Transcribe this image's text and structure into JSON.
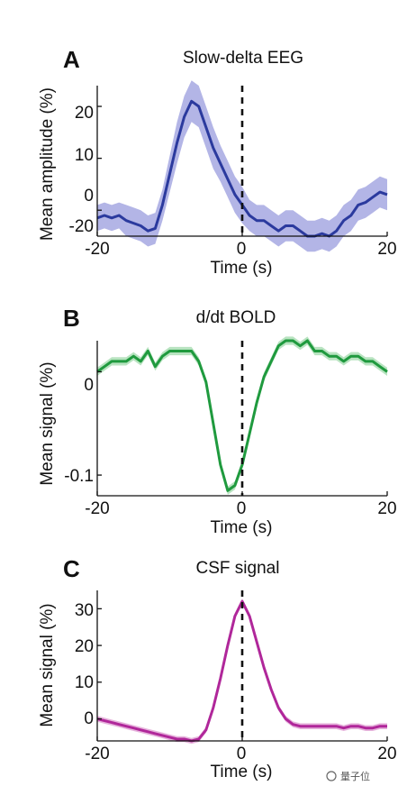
{
  "watermark": "量子位",
  "chart_data": [
    {
      "type": "line",
      "panel": "A",
      "title": "Slow-delta EEG",
      "xlabel": "Time (s)",
      "ylabel": "Mean amplitude (%)",
      "xlim": [
        -20,
        20
      ],
      "ylim": [
        -5,
        24
      ],
      "x_ticks": [
        -20,
        0,
        20
      ],
      "y_ticks": [
        0,
        10,
        20
      ],
      "x_tick_labels": [
        "-20",
        "0",
        "20"
      ],
      "y_tick_labels": [
        "0",
        "10",
        "20"
      ],
      "extra_y_tick_labels": [
        {
          "value": -4.5,
          "label": "-20"
        }
      ],
      "vline_x": 0,
      "line_color": "#2b3a9e",
      "band_color": "#b3b5e6",
      "series": [
        {
          "x": [
            -20,
            -19,
            -18,
            -17,
            -16,
            -15,
            -14,
            -13,
            -12,
            -11,
            -10,
            -9,
            -8,
            -7,
            -6,
            -5,
            -4,
            -3,
            -2,
            -1,
            0,
            1,
            2,
            3,
            4,
            5,
            6,
            7,
            8,
            9,
            10,
            11,
            12,
            13,
            14,
            15,
            16,
            17,
            18,
            19,
            20
          ],
          "values": [
            -1.5,
            -1,
            -1.5,
            -1,
            -2,
            -2.5,
            -3,
            -4,
            -3.5,
            1,
            7,
            13,
            18,
            21,
            20,
            16,
            12,
            9,
            6,
            3,
            1,
            -1,
            -2,
            -2,
            -3,
            -4,
            -3,
            -3,
            -4,
            -5,
            -5,
            -4.5,
            -5,
            -4,
            -2,
            -1,
            1,
            1.5,
            2.5,
            3.5,
            3
          ],
          "err": [
            2.5,
            2.5,
            2.5,
            2.5,
            3,
            3,
            3,
            3,
            3,
            3,
            3.5,
            4,
            4,
            4,
            4,
            4,
            4,
            3.5,
            3.5,
            3.5,
            3.5,
            3,
            3,
            3,
            3,
            3,
            3,
            3,
            3,
            3,
            3,
            3,
            3,
            3,
            3,
            3,
            3,
            3,
            3,
            3,
            3
          ]
        }
      ]
    },
    {
      "type": "line",
      "panel": "B",
      "title": "d/dt BOLD",
      "xlabel": "Time (s)",
      "ylabel": "Mean signal (%)",
      "xlim": [
        -20,
        20
      ],
      "ylim": [
        -0.12,
        0.03
      ],
      "x_ticks": [
        -20,
        0,
        20
      ],
      "y_ticks": [
        0,
        -0.1
      ],
      "x_tick_labels": [
        "-20",
        "0",
        "20"
      ],
      "y_tick_labels": [
        "0",
        "-0.1"
      ],
      "vline_x": 0,
      "line_color": "#1f9a3e",
      "band_color": "#b8e3c0",
      "series": [
        {
          "x": [
            -20,
            -19,
            -18,
            -17,
            -16,
            -15,
            -14,
            -13,
            -12,
            -11,
            -10,
            -9,
            -8,
            -7,
            -6,
            -5,
            -4,
            -3,
            -2,
            -1,
            0,
            1,
            2,
            3,
            4,
            5,
            6,
            7,
            8,
            9,
            10,
            11,
            12,
            13,
            14,
            15,
            16,
            17,
            18,
            19,
            20
          ],
          "values": [
            0,
            0.005,
            0.01,
            0.01,
            0.01,
            0.015,
            0.01,
            0.02,
            0.005,
            0.015,
            0.02,
            0.02,
            0.02,
            0.02,
            0.01,
            -0.01,
            -0.05,
            -0.09,
            -0.115,
            -0.11,
            -0.09,
            -0.06,
            -0.03,
            -0.005,
            0.01,
            0.025,
            0.03,
            0.03,
            0.025,
            0.03,
            0.02,
            0.02,
            0.015,
            0.015,
            0.01,
            0.015,
            0.015,
            0.01,
            0.01,
            0.005,
            0
          ],
          "err": [
            0.004,
            0.004,
            0.004,
            0.004,
            0.004,
            0.004,
            0.004,
            0.004,
            0.004,
            0.004,
            0.004,
            0.004,
            0.004,
            0.004,
            0.004,
            0.004,
            0.004,
            0.004,
            0.004,
            0.004,
            0.004,
            0.004,
            0.004,
            0.004,
            0.004,
            0.004,
            0.004,
            0.004,
            0.004,
            0.004,
            0.004,
            0.004,
            0.004,
            0.004,
            0.004,
            0.004,
            0.004,
            0.004,
            0.004,
            0.004,
            0.004
          ]
        }
      ]
    },
    {
      "type": "line",
      "panel": "C",
      "title": "CSF signal",
      "xlabel": "Time (s)",
      "ylabel": "Mean signal (%)",
      "xlim": [
        -20,
        20
      ],
      "ylim": [
        -6,
        35
      ],
      "x_ticks": [
        -20,
        0,
        20
      ],
      "y_ticks": [
        0,
        10,
        20,
        30
      ],
      "x_tick_labels": [
        "-20",
        "0",
        "20"
      ],
      "y_tick_labels": [
        "0",
        "10",
        "20",
        "30"
      ],
      "vline_x": 0,
      "line_color": "#b0279a",
      "band_color": "#e6b3dc",
      "series": [
        {
          "x": [
            -20,
            -19,
            -18,
            -17,
            -16,
            -15,
            -14,
            -13,
            -12,
            -11,
            -10,
            -9,
            -8,
            -7,
            -6,
            -5,
            -4,
            -3,
            -2,
            -1,
            0,
            1,
            2,
            3,
            4,
            5,
            6,
            7,
            8,
            9,
            10,
            11,
            12,
            13,
            14,
            15,
            16,
            17,
            18,
            19,
            20
          ],
          "values": [
            0,
            -0.5,
            -1,
            -1.5,
            -2,
            -2.5,
            -3,
            -3.5,
            -4,
            -4.5,
            -5,
            -5.5,
            -5.5,
            -6,
            -5.5,
            -3,
            3,
            11,
            20,
            28,
            32,
            28,
            21,
            14,
            8,
            3,
            0,
            -1.5,
            -2,
            -2,
            -2,
            -2,
            -2,
            -2,
            -2.5,
            -2,
            -2,
            -2.5,
            -2.5,
            -2,
            -2
          ],
          "err": [
            0.8,
            0.8,
            0.8,
            0.8,
            0.8,
            0.8,
            0.8,
            0.8,
            0.8,
            0.8,
            0.8,
            0.8,
            0.8,
            0.8,
            0.8,
            0.8,
            0.8,
            0.8,
            0.8,
            0.8,
            0.8,
            0.8,
            0.8,
            0.8,
            0.8,
            0.8,
            0.8,
            0.8,
            0.8,
            0.8,
            0.8,
            0.8,
            0.8,
            0.8,
            0.8,
            0.8,
            0.8,
            0.8,
            0.8,
            0.8,
            0.8
          ]
        }
      ]
    }
  ]
}
